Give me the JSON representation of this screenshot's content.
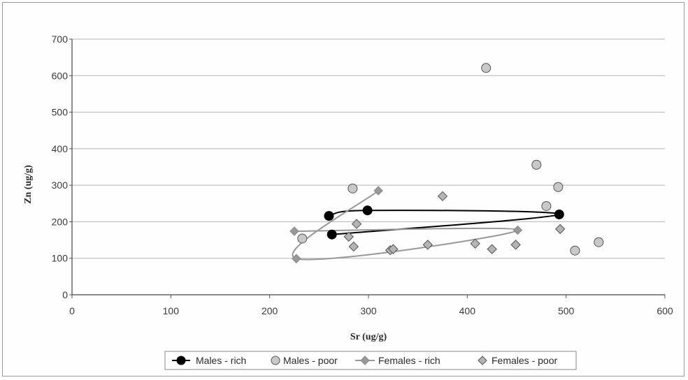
{
  "chart_data": {
    "type": "scatter",
    "title": "",
    "xlabel": "Sr (ug/g)",
    "ylabel": "Zn (ug/g)",
    "xlim": [
      0,
      600
    ],
    "ylim": [
      0,
      700
    ],
    "x_ticks": [
      "0",
      "100",
      "200",
      "300",
      "400",
      "500",
      "600"
    ],
    "y_ticks": [
      "0",
      "100",
      "200",
      "300",
      "400",
      "500",
      "600",
      "700"
    ],
    "grid": "horizontal",
    "legend_position": "bottom",
    "series": [
      {
        "name": "Males - rich",
        "style": "line-with-markers",
        "marker": "circle",
        "color": "#000000",
        "points": [
          [
            260,
            216
          ],
          [
            299,
            231
          ],
          [
            493,
            220
          ],
          [
            263,
            165
          ]
        ]
      },
      {
        "name": "Males - poor",
        "style": "markers",
        "marker": "circle",
        "color": "#c8c8c8",
        "points": [
          [
            233,
            154
          ],
          [
            284,
            291
          ],
          [
            419,
            621
          ],
          [
            470,
            356
          ],
          [
            480,
            243
          ],
          [
            492,
            295
          ],
          [
            509,
            121
          ],
          [
            533,
            144
          ]
        ]
      },
      {
        "name": "Females - rich",
        "style": "line-with-markers",
        "marker": "diamond",
        "color": "#999999",
        "points": [
          [
            310,
            285
          ],
          [
            227,
            99
          ],
          [
            451,
            177
          ],
          [
            225,
            174
          ]
        ]
      },
      {
        "name": "Females - poor",
        "style": "markers",
        "marker": "diamond",
        "color": "#b4b4b4",
        "points": [
          [
            280,
            159
          ],
          [
            285,
            132
          ],
          [
            288,
            194
          ],
          [
            322,
            122
          ],
          [
            325,
            125
          ],
          [
            360,
            137
          ],
          [
            375,
            270
          ],
          [
            408,
            140
          ],
          [
            425,
            125
          ],
          [
            449,
            137
          ],
          [
            494,
            180
          ]
        ]
      }
    ]
  }
}
